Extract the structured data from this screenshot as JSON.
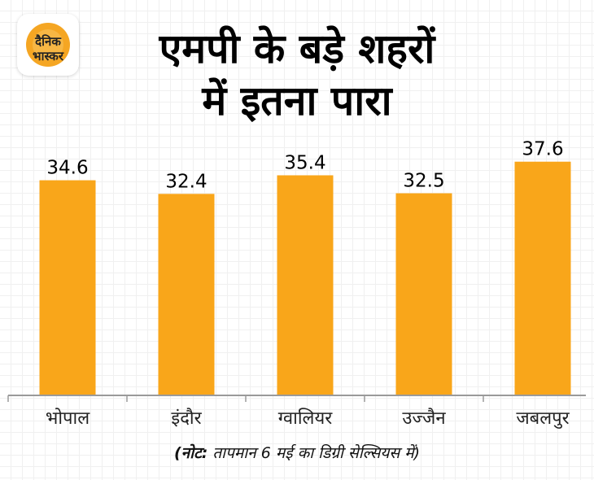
{
  "logo": {
    "line1": "दैनिक",
    "line2": "भास्कर",
    "sun_color": "#f5a623"
  },
  "title": {
    "line1": "एमपी के बड़े शहरों",
    "line2": "में इतना पारा"
  },
  "note": {
    "prefix": "(नोट:",
    "text": " तापमान 6 मई का डिग्री सेल्सियस में)"
  },
  "colors": {
    "bar": "#f9a61a",
    "axis": "#9a9a9a",
    "text": "#000000"
  },
  "chart_data": {
    "type": "bar",
    "categories": [
      "भोपाल",
      "इंदौर",
      "ग्वालियर",
      "उज्जैन",
      "जबलपुर"
    ],
    "values": [
      34.6,
      32.4,
      35.4,
      32.5,
      37.6
    ],
    "value_labels": [
      "34.6",
      "32.4",
      "35.4",
      "32.5",
      "37.6"
    ],
    "title": "एमपी के बड़े शहरों में इतना पारा",
    "xlabel": "",
    "ylabel": "",
    "ylim": [
      0,
      44
    ],
    "grid": false,
    "legend": "none"
  }
}
